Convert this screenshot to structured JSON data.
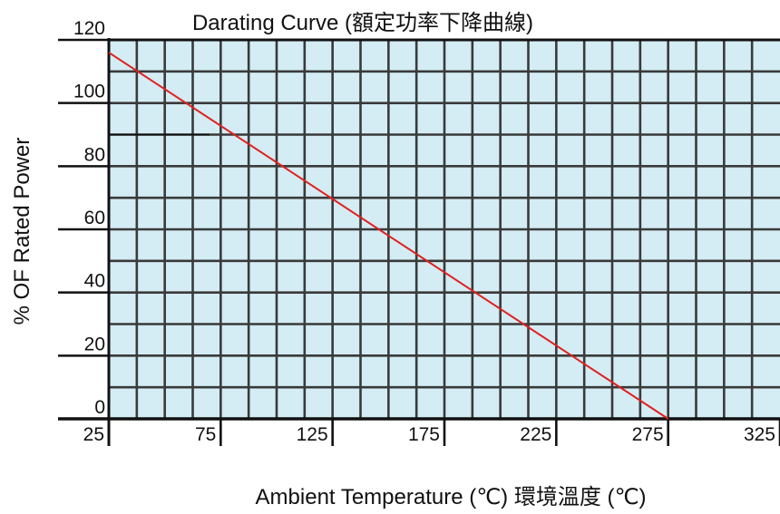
{
  "chart_data": {
    "type": "line",
    "title": "Darating Curve (額定功率下降曲線)",
    "xlabel": "Ambient Temperature (℃) 環境溫度 (℃)",
    "ylabel": "% OF Rated Power",
    "x_ticks": [
      "25",
      "75",
      "125",
      "175",
      "225",
      "275",
      "325"
    ],
    "y_ticks": [
      "120",
      "100",
      "80",
      "60",
      "40",
      "20",
      "0"
    ],
    "xlim": [
      25,
      325
    ],
    "ylim": [
      0,
      120
    ],
    "grid": true,
    "series": [
      {
        "x": [
          25,
          275
        ],
        "y": [
          116,
          0
        ],
        "color": "#e02020"
      }
    ],
    "reference_line": {
      "x": [
        25,
        70
      ],
      "y": [
        90,
        90
      ],
      "color": "#111111"
    },
    "colors": {
      "plot_background": "#d4ecf3",
      "grid": "#3a3a3a",
      "frame": "#111111"
    }
  }
}
